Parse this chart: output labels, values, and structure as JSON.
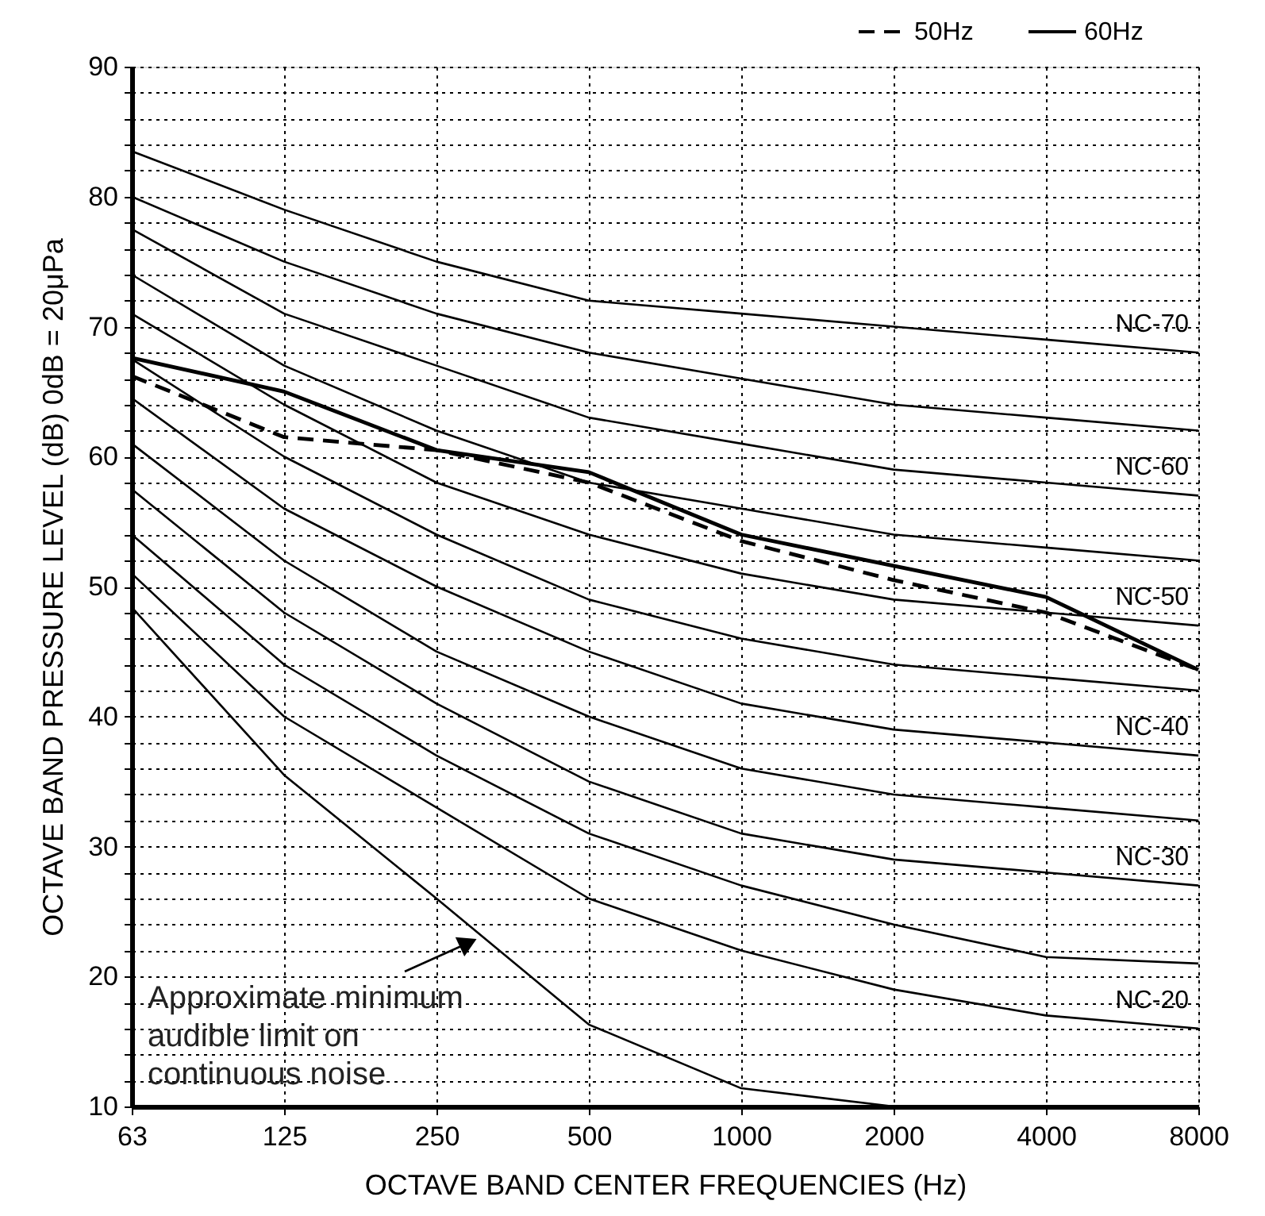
{
  "chart_data": {
    "type": "line",
    "xlabel": "OCTAVE BAND CENTER FREQUENCIES (Hz)",
    "ylabel": "OCTAVE BAND PRESSURE LEVEL (dB)  0dB = 20μPa",
    "categories": [
      "63",
      "125",
      "250",
      "500",
      "1000",
      "2000",
      "4000",
      "8000"
    ],
    "ylim": [
      10,
      90
    ],
    "yticks": [
      10,
      {
        "value": 12,
        "label": null
      },
      {
        "value": 14,
        "label": null
      },
      {
        "value": 16,
        "label": null
      },
      {
        "value": 18,
        "label": null
      },
      20,
      {
        "value": 22,
        "label": null
      },
      {
        "value": 24,
        "label": null
      },
      {
        "value": 26,
        "label": null
      },
      {
        "value": 28,
        "label": null
      },
      30,
      {
        "value": 32,
        "label": null
      },
      {
        "value": 34,
        "label": null
      },
      {
        "value": 36,
        "label": null
      },
      {
        "value": 38,
        "label": null
      },
      40,
      {
        "value": 42,
        "label": null
      },
      {
        "value": 44,
        "label": null
      },
      {
        "value": 46,
        "label": null
      },
      {
        "value": 48,
        "label": null
      },
      50,
      {
        "value": 52,
        "label": null
      },
      {
        "value": 54,
        "label": null
      },
      {
        "value": 56,
        "label": null
      },
      {
        "value": 58,
        "label": null
      },
      60,
      {
        "value": 62,
        "label": null
      },
      {
        "value": 64,
        "label": null
      },
      {
        "value": 66,
        "label": null
      },
      {
        "value": 68,
        "label": null
      },
      70,
      {
        "value": 72,
        "label": null
      },
      {
        "value": 74,
        "label": null
      },
      {
        "value": 76,
        "label": null
      },
      {
        "value": 78,
        "label": null
      },
      80,
      {
        "value": 82,
        "label": null
      },
      {
        "value": 84,
        "label": null
      },
      {
        "value": 86,
        "label": null
      },
      {
        "value": 88,
        "label": null
      },
      90
    ],
    "grid": true,
    "legend": "top right",
    "line_style": "solid",
    "marker": "none",
    "series": [
      {
        "color": "#000000",
        "values": [
          83.5,
          79,
          75,
          72,
          71,
          70,
          69,
          68
        ]
      },
      {
        "color": "#000000",
        "values": [
          80,
          75,
          71,
          68,
          66,
          64,
          63,
          62
        ]
      },
      {
        "color": "#000000",
        "values": [
          77.5,
          71,
          67,
          63,
          61,
          59,
          58,
          57
        ]
      },
      {
        "color": "#000000",
        "values": [
          74,
          67,
          62,
          58,
          56,
          54,
          53,
          52
        ]
      },
      {
        "color": "#000000",
        "values": [
          71,
          64,
          58,
          54,
          51,
          49,
          48,
          47
        ]
      },
      {
        "color": "#000000",
        "values": [
          67.5,
          60,
          54,
          49,
          46,
          44,
          43,
          42
        ]
      },
      {
        "color": "#000000",
        "values": [
          64.5,
          56,
          50,
          45,
          41,
          39,
          38,
          37
        ]
      },
      {
        "color": "#000000",
        "values": [
          61,
          52,
          45,
          40,
          36,
          34,
          33,
          32
        ]
      },
      {
        "color": "#000000",
        "values": [
          57.5,
          48,
          41,
          35,
          31,
          29,
          28,
          27
        ]
      },
      {
        "color": "#000000",
        "values": [
          54,
          44,
          37,
          31,
          27,
          24,
          21.5,
          21
        ]
      },
      {
        "color": "#000000",
        "values": [
          51,
          40,
          33,
          26,
          22,
          19,
          17,
          16
        ]
      },
      {
        "color": "#000000",
        "values": [
          48.4,
          35.5,
          26,
          16.3,
          11.4,
          10,
          null,
          null
        ]
      },
      {
        "name": "50Hz",
        "color": "#000000",
        "line_style": "dashed",
        "values": [
          66.2,
          61.5,
          60.5,
          58,
          53.5,
          50.5,
          48,
          43.6
        ]
      },
      {
        "name": "60Hz",
        "color": "#000000",
        "line_style": "solid",
        "values": [
          67.6,
          65,
          60.5,
          58.8,
          54,
          51.6,
          49.2,
          43.6
        ]
      }
    ],
    "annotations": [
      {
        "text": "NC-70",
        "x": "8000",
        "y": 68
      },
      {
        "text": "NC-60",
        "x": "8000",
        "y": 57
      },
      {
        "text": "NC-50",
        "x": "8000",
        "y": 47
      },
      {
        "text": "NC-40",
        "x": "8000",
        "y": 37
      },
      {
        "text": "NC-30",
        "x": "8000",
        "y": 27
      },
      {
        "text": "NC-20",
        "x": "8000",
        "y": 16
      },
      "Approximate minimum\naudible limit on\ncontinuous noise"
    ]
  }
}
